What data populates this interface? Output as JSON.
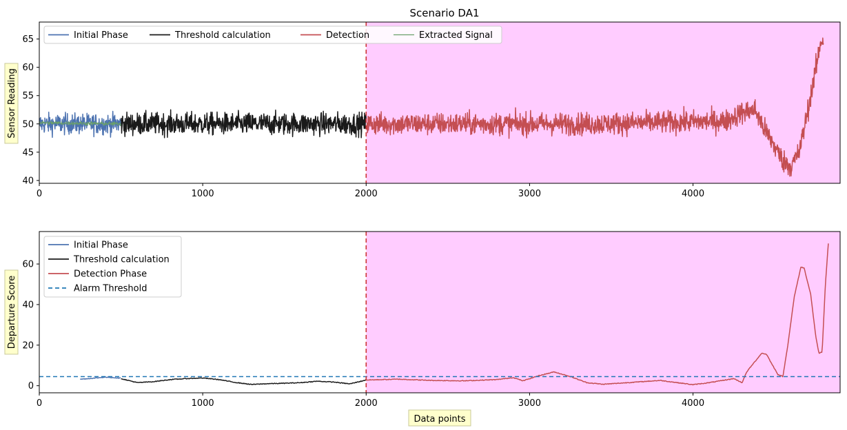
{
  "chart_data": [
    {
      "type": "line",
      "title": "Scenario DA1",
      "xlabel": "",
      "ylabel": "Sensor Reading",
      "xlim": [
        0,
        4900
      ],
      "ylim": [
        39.5,
        68
      ],
      "xticks": [
        0,
        1000,
        2000,
        3000,
        4000
      ],
      "yticks": [
        40,
        45,
        50,
        55,
        60,
        65
      ],
      "legend": {
        "placement": "top-left",
        "ncol": 4
      },
      "detection_start": 2000,
      "series": [
        {
          "name": "Initial Phase",
          "color": "#4c72b0",
          "x_range": [
            0,
            500
          ],
          "baseline": 50,
          "noise": 1.3,
          "points": [
            [
              0,
              50
            ],
            [
              500,
              50
            ]
          ]
        },
        {
          "name": "Threshold calculation",
          "color": "#1a1a1a",
          "x_range": [
            500,
            2000
          ],
          "baseline": 50,
          "noise": 1.4,
          "points": [
            [
              500,
              50
            ],
            [
              2000,
              50
            ]
          ]
        },
        {
          "name": "Detection",
          "color": "#c44e52",
          "x_range": [
            2000,
            4800
          ],
          "noise": 1.4,
          "points": [
            [
              2000,
              50
            ],
            [
              3000,
              50
            ],
            [
              3400,
              50
            ],
            [
              4200,
              50.5
            ],
            [
              4300,
              52
            ],
            [
              4380,
              52.5
            ],
            [
              4420,
              50
            ],
            [
              4480,
              47
            ],
            [
              4550,
              43.5
            ],
            [
              4600,
              42.5
            ],
            [
              4650,
              45
            ],
            [
              4700,
              52
            ],
            [
              4760,
              61
            ],
            [
              4780,
              64.5
            ],
            [
              4800,
              65
            ]
          ]
        },
        {
          "name": "Extracted Signal",
          "color": "#6a9f6a",
          "x_range": [
            0,
            500
          ],
          "baseline": 50,
          "noise": 0.25,
          "points": [
            [
              0,
              50.2
            ],
            [
              500,
              50
            ]
          ]
        }
      ]
    },
    {
      "type": "line",
      "title": "",
      "xlabel": "Data points",
      "ylabel": "Departure Score",
      "xlim": [
        0,
        4900
      ],
      "ylim": [
        -3.5,
        76
      ],
      "xticks": [
        0,
        1000,
        2000,
        3000,
        4000
      ],
      "yticks": [
        0,
        20,
        40,
        60
      ],
      "legend": {
        "placement": "top-left",
        "ncol": 1
      },
      "detection_start": 2000,
      "alarm_threshold": 4.5,
      "series": [
        {
          "name": "Initial Phase",
          "color": "#4c72b0",
          "points": [
            [
              250,
              3.2
            ],
            [
              300,
              3.5
            ],
            [
              350,
              3.8
            ],
            [
              400,
              4.2
            ],
            [
              450,
              4.0
            ],
            [
              500,
              3.7
            ]
          ]
        },
        {
          "name": "Threshold calculation",
          "color": "#1a1a1a",
          "points": [
            [
              500,
              3.5
            ],
            [
              600,
              1.5
            ],
            [
              700,
              2.0
            ],
            [
              800,
              3.0
            ],
            [
              900,
              3.5
            ],
            [
              1000,
              3.8
            ],
            [
              1100,
              3.0
            ],
            [
              1200,
              1.6
            ],
            [
              1300,
              0.6
            ],
            [
              1400,
              1.0
            ],
            [
              1500,
              1.2
            ],
            [
              1600,
              1.5
            ],
            [
              1700,
              2.2
            ],
            [
              1800,
              1.8
            ],
            [
              1900,
              0.9
            ],
            [
              2000,
              2.8
            ]
          ]
        },
        {
          "name": "Detection Phase",
          "color": "#c44e52",
          "points": [
            [
              2000,
              2.8
            ],
            [
              2200,
              3.2
            ],
            [
              2400,
              2.6
            ],
            [
              2600,
              2.4
            ],
            [
              2800,
              3.0
            ],
            [
              2900,
              4.0
            ],
            [
              2960,
              2.4
            ],
            [
              3050,
              4.8
            ],
            [
              3150,
              6.8
            ],
            [
              3250,
              4.5
            ],
            [
              3350,
              1.5
            ],
            [
              3450,
              0.7
            ],
            [
              3600,
              1.5
            ],
            [
              3800,
              2.6
            ],
            [
              4000,
              0.5
            ],
            [
              4100,
              1.5
            ],
            [
              4250,
              3.5
            ],
            [
              4300,
              1.5
            ],
            [
              4330,
              7
            ],
            [
              4380,
              12
            ],
            [
              4420,
              16
            ],
            [
              4450,
              15.5
            ],
            [
              4480,
              11
            ],
            [
              4520,
              5.5
            ],
            [
              4550,
              4.5
            ],
            [
              4580,
              20
            ],
            [
              4620,
              44
            ],
            [
              4660,
              58.5
            ],
            [
              4680,
              58
            ],
            [
              4720,
              45
            ],
            [
              4750,
              25
            ],
            [
              4770,
              16
            ],
            [
              4790,
              16.5
            ],
            [
              4810,
              50
            ],
            [
              4830,
              72.5
            ]
          ]
        },
        {
          "name": "Alarm Threshold",
          "color": "#1f77b4",
          "style": "dashed",
          "points": [
            [
              0,
              4.5
            ],
            [
              4900,
              4.5
            ]
          ]
        }
      ]
    }
  ]
}
